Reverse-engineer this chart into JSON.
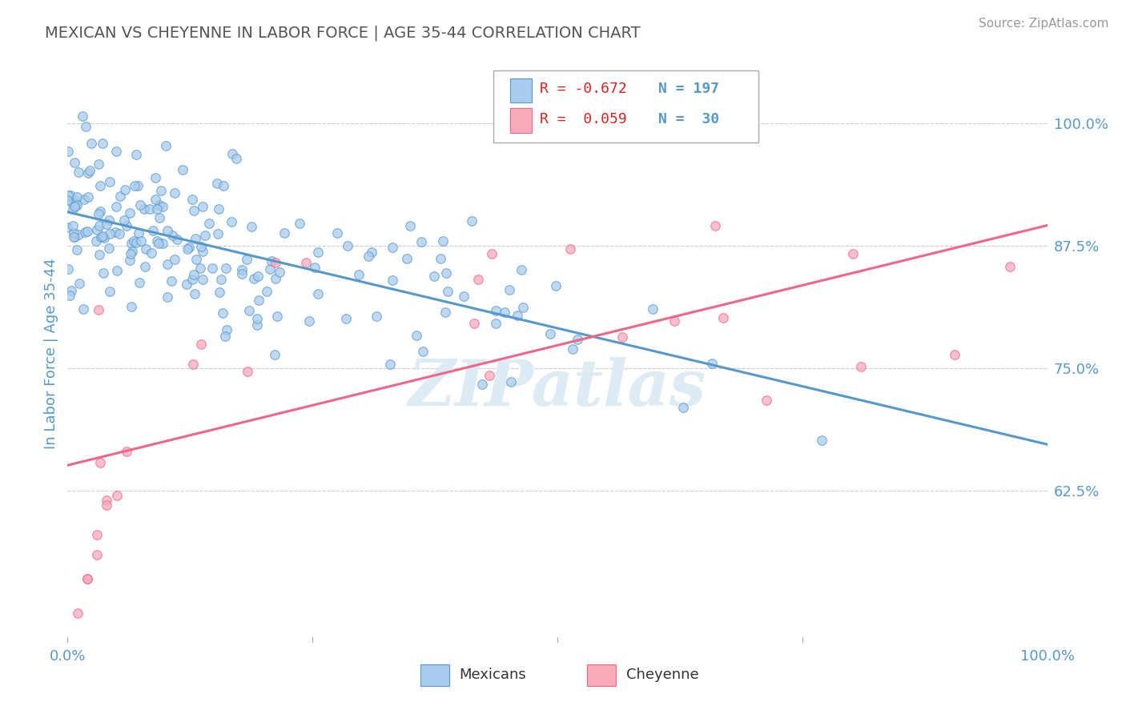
{
  "title": "MEXICAN VS CHEYENNE IN LABOR FORCE | AGE 35-44 CORRELATION CHART",
  "source": "Source: ZipAtlas.com",
  "ylabel": "In Labor Force | Age 35-44",
  "xlim": [
    0.0,
    1.0
  ],
  "ylim": [
    0.47,
    1.06
  ],
  "yticks": [
    0.625,
    0.75,
    0.875,
    1.0
  ],
  "ytick_labels": [
    "62.5%",
    "75.0%",
    "87.5%",
    "100.0%"
  ],
  "mexicans_R": -0.672,
  "mexicans_N": 197,
  "cheyenne_R": 0.059,
  "cheyenne_N": 30,
  "mexican_color": "#aaccee",
  "cheyenne_color": "#f9aabb",
  "mexican_line_color": "#5599cc",
  "cheyenne_line_color": "#ee6688",
  "watermark": "ZIPatlas",
  "background_color": "#ffffff",
  "grid_color": "#cccccc",
  "title_color": "#555555",
  "axis_label_color": "#5599cc",
  "r_color": "#dd2222",
  "n_color": "#5599cc",
  "legend_bg": "#ffffff",
  "legend_border": "#aaaaaa"
}
